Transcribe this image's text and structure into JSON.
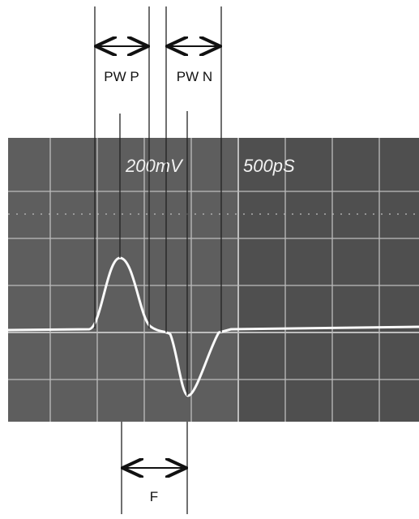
{
  "annotations": {
    "pulse_width_positive": "PW P",
    "pulse_width_negative": "PW N",
    "full_width": "F"
  },
  "scope": {
    "volts_per_div": "200mV",
    "time_per_div": "500pS"
  }
}
